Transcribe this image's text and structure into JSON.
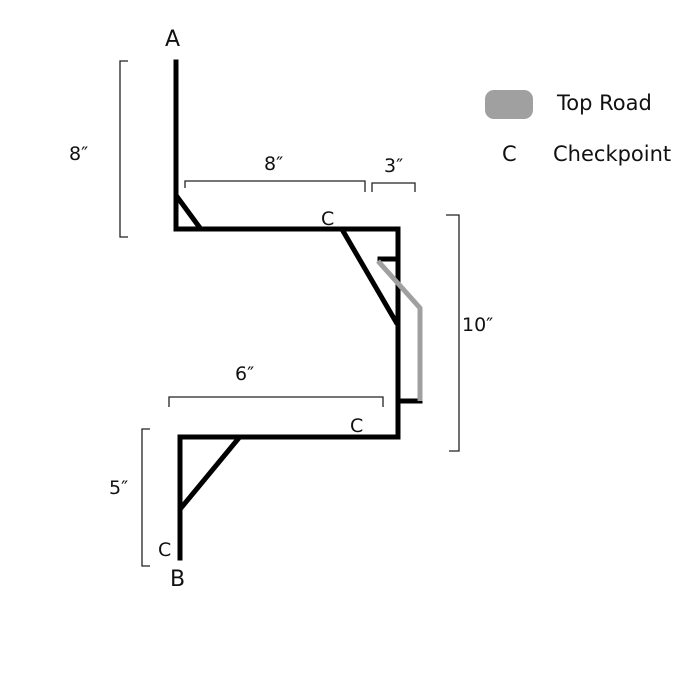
{
  "points": {
    "start": "A",
    "end": "B"
  },
  "checkpoint_marks": [
    "C",
    "C",
    "C"
  ],
  "dimensions": {
    "left_top": "8″",
    "top_horizontal": "8″",
    "small_horizontal": "3″",
    "right_vertical": "10″",
    "lower_horizontal": "6″",
    "left_bottom": "5″"
  },
  "legend": {
    "top_road": {
      "label": "Top Road",
      "color": "#a0a0a0"
    },
    "checkpoint": {
      "symbol": "C",
      "label": "Checkpoint"
    }
  },
  "colors": {
    "road": "#000000",
    "top_road": "#a0a0a0"
  }
}
